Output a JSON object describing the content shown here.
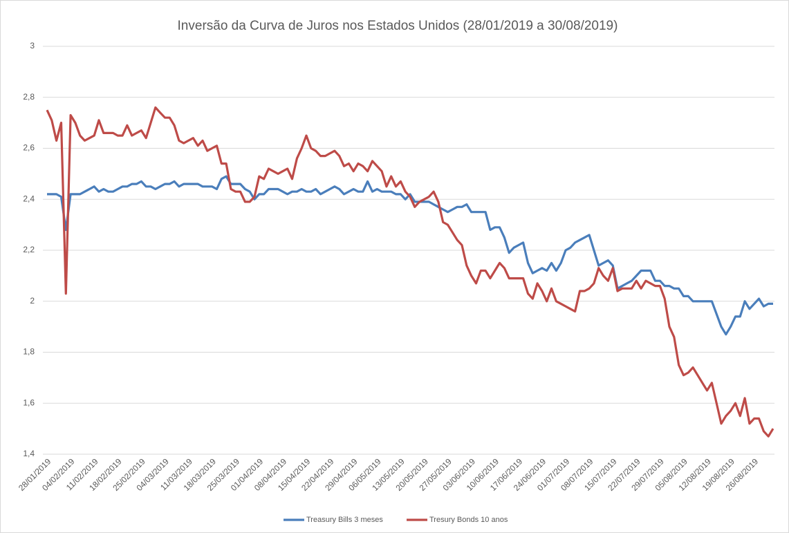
{
  "chart_data": {
    "type": "line",
    "title": "Inversão da Curva de Juros nos Estados Unidos (28/01/2019 a 30/08/2019)",
    "categories": [
      "28/01/2019",
      null,
      null,
      null,
      null,
      "04/02/2019",
      null,
      null,
      null,
      null,
      "11/02/2019",
      null,
      null,
      null,
      null,
      "18/02/2019",
      null,
      null,
      null,
      null,
      "25/02/2019",
      null,
      null,
      null,
      null,
      "04/03/2019",
      null,
      null,
      null,
      null,
      "11/03/2019",
      null,
      null,
      null,
      null,
      "18/03/2019",
      null,
      null,
      null,
      null,
      "25/03/2019",
      null,
      null,
      null,
      null,
      "01/04/2019",
      null,
      null,
      null,
      null,
      "08/04/2019",
      null,
      null,
      null,
      null,
      "15/04/2019",
      null,
      null,
      null,
      null,
      "22/04/2019",
      null,
      null,
      null,
      null,
      "29/04/2019",
      null,
      null,
      null,
      null,
      "06/05/2019",
      null,
      null,
      null,
      null,
      "13/05/2019",
      null,
      null,
      null,
      null,
      "20/05/2019",
      null,
      null,
      null,
      null,
      "27/05/2019",
      null,
      null,
      null,
      null,
      "03/06/2019",
      null,
      null,
      null,
      null,
      "10/06/2019",
      null,
      null,
      null,
      null,
      "17/06/2019",
      null,
      null,
      null,
      null,
      "24/06/2019",
      null,
      null,
      null,
      null,
      "01/07/2019",
      null,
      null,
      null,
      null,
      "08/07/2019",
      null,
      null,
      null,
      null,
      "15/07/2019",
      null,
      null,
      null,
      null,
      "22/07/2019",
      null,
      null,
      null,
      null,
      "29/07/2019",
      null,
      null,
      null,
      null,
      "05/08/2019",
      null,
      null,
      null,
      null,
      "12/08/2019",
      null,
      null,
      null,
      null,
      "19/08/2019",
      null,
      null,
      null,
      null,
      "26/08/2019",
      null,
      null,
      null,
      null
    ],
    "series": [
      {
        "name": "Treasury Bills 3 meses",
        "color": "#4a7ebb",
        "values": [
          2.42,
          2.42,
          2.42,
          2.41,
          2.28,
          2.42,
          2.42,
          2.42,
          2.43,
          2.44,
          2.45,
          2.43,
          2.44,
          2.43,
          2.43,
          2.44,
          2.45,
          2.45,
          2.46,
          2.46,
          2.47,
          2.45,
          2.45,
          2.44,
          2.45,
          2.46,
          2.46,
          2.47,
          2.45,
          2.46,
          2.46,
          2.46,
          2.46,
          2.45,
          2.45,
          2.45,
          2.44,
          2.48,
          2.49,
          2.46,
          2.46,
          2.46,
          2.44,
          2.43,
          2.4,
          2.42,
          2.42,
          2.44,
          2.44,
          2.44,
          2.43,
          2.42,
          2.43,
          2.43,
          2.44,
          2.43,
          2.43,
          2.44,
          2.42,
          2.43,
          2.44,
          2.45,
          2.44,
          2.42,
          2.43,
          2.44,
          2.43,
          2.43,
          2.47,
          2.43,
          2.44,
          2.43,
          2.43,
          2.43,
          2.42,
          2.42,
          2.4,
          2.42,
          2.39,
          2.39,
          2.39,
          2.39,
          2.38,
          2.37,
          2.36,
          2.35,
          2.36,
          2.37,
          2.37,
          2.38,
          2.35,
          2.35,
          2.35,
          2.35,
          2.28,
          2.29,
          2.29,
          2.25,
          2.19,
          2.21,
          2.22,
          2.23,
          2.15,
          2.11,
          2.12,
          2.13,
          2.12,
          2.15,
          2.12,
          2.15,
          2.2,
          2.21,
          2.23,
          2.24,
          2.25,
          2.26,
          2.2,
          2.14,
          2.15,
          2.16,
          2.14,
          2.05,
          2.06,
          2.07,
          2.08,
          2.1,
          2.12,
          2.12,
          2.12,
          2.08,
          2.08,
          2.06,
          2.06,
          2.05,
          2.05,
          2.02,
          2.02,
          2.0,
          2.0,
          2.0,
          2.0,
          2.0,
          1.95,
          1.9,
          1.87,
          1.9,
          1.94,
          1.94,
          2.0,
          1.97,
          1.99,
          2.01,
          1.98,
          1.99,
          1.99
        ]
      },
      {
        "name": "Tresury Bonds 10 anos",
        "color": "#be4b48",
        "values": [
          2.75,
          2.71,
          2.63,
          2.7,
          2.03,
          2.73,
          2.7,
          2.65,
          2.63,
          2.64,
          2.65,
          2.71,
          2.66,
          2.66,
          2.66,
          2.65,
          2.65,
          2.69,
          2.65,
          2.66,
          2.67,
          2.64,
          2.7,
          2.76,
          2.74,
          2.72,
          2.72,
          2.69,
          2.63,
          2.62,
          2.63,
          2.64,
          2.61,
          2.63,
          2.59,
          2.6,
          2.61,
          2.54,
          2.54,
          2.44,
          2.43,
          2.43,
          2.39,
          2.39,
          2.41,
          2.49,
          2.48,
          2.52,
          2.51,
          2.5,
          2.51,
          2.52,
          2.48,
          2.56,
          2.6,
          2.65,
          2.6,
          2.59,
          2.57,
          2.57,
          2.58,
          2.59,
          2.57,
          2.53,
          2.54,
          2.51,
          2.54,
          2.53,
          2.51,
          2.55,
          2.53,
          2.51,
          2.45,
          2.49,
          2.45,
          2.47,
          2.43,
          2.41,
          2.37,
          2.39,
          2.4,
          2.41,
          2.43,
          2.39,
          2.31,
          2.3,
          2.27,
          2.24,
          2.22,
          2.14,
          2.1,
          2.07,
          2.12,
          2.12,
          2.09,
          2.12,
          2.15,
          2.13,
          2.09,
          2.09,
          2.09,
          2.09,
          2.03,
          2.01,
          2.07,
          2.04,
          2.0,
          2.05,
          2.0,
          1.99,
          1.98,
          1.97,
          1.96,
          2.04,
          2.04,
          2.05,
          2.07,
          2.13,
          2.1,
          2.08,
          2.13,
          2.04,
          2.05,
          2.05,
          2.05,
          2.08,
          2.05,
          2.08,
          2.07,
          2.06,
          2.06,
          2.01,
          1.9,
          1.86,
          1.75,
          1.71,
          1.72,
          1.74,
          1.71,
          1.68,
          1.65,
          1.68,
          1.6,
          1.52,
          1.55,
          1.57,
          1.6,
          1.55,
          1.62,
          1.52,
          1.54,
          1.54,
          1.49,
          1.47,
          1.5
        ]
      }
    ],
    "ylim": [
      1.4,
      3
    ],
    "yticks": [
      {
        "value": 1.4,
        "label": "1,4"
      },
      {
        "value": 1.6,
        "label": "1,6"
      },
      {
        "value": 1.8,
        "label": "1,8"
      },
      2,
      {
        "value": 2.2,
        "label": "2,2"
      },
      {
        "value": 2.4,
        "label": "2,4"
      },
      {
        "value": 2.6,
        "label": "2,6"
      },
      {
        "value": 2.8,
        "label": "2,8"
      },
      3
    ],
    "grid": true,
    "legend": "bottom"
  }
}
